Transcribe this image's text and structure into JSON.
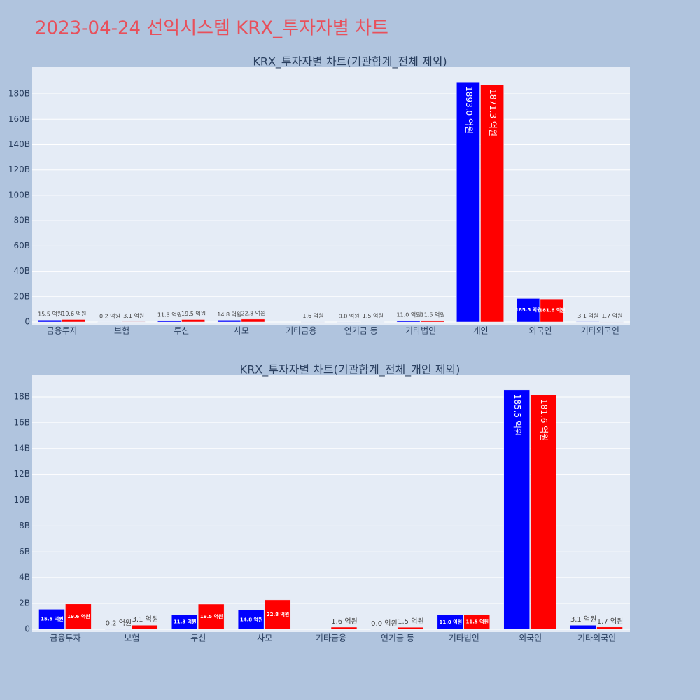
{
  "title": "2023-04-24 선익시스템 KRX_투자자별 차트",
  "chart_data": [
    {
      "type": "bar",
      "title": "KRX_투자자별 차트(기관합계_전체 제외)",
      "categories": [
        "금융투자",
        "보험",
        "투신",
        "사모",
        "기타금융",
        "연기금 등",
        "기타법인",
        "개인",
        "외국인",
        "기타외국인"
      ],
      "series": [
        {
          "color": "#0000ff",
          "values": [
            1550000000,
            20000000,
            1130000000,
            1480000000,
            null,
            0,
            1100000000,
            189300000000,
            18550000000,
            310000000
          ],
          "value_labels": [
            "15.5 억원",
            "0.2 억원",
            "11.3 억원",
            "14.8 억원",
            null,
            "0.0 억원",
            "11.0 억원",
            "1893.0 억원",
            "185.5 억원",
            "3.1 억원"
          ]
        },
        {
          "color": "#ff0000",
          "values": [
            1960000000,
            310000000,
            1950000000,
            2280000000,
            160000000,
            150000000,
            1150000000,
            187130000000,
            18160000000,
            170000000
          ],
          "value_labels": [
            "19.6 억원",
            "3.1 억원",
            "19.5 억원",
            "22.8 억원",
            "1.6 억원",
            "1.5 억원",
            "11.5 억원",
            "1871.3 억원",
            "181.6 억원",
            "1.7 억원"
          ]
        }
      ],
      "ylim": [
        -2200000000,
        201000000000
      ],
      "yticks": [
        0,
        {
          "value": 20000000000,
          "label": "20B"
        },
        {
          "value": 40000000000,
          "label": "40B"
        },
        {
          "value": 60000000000,
          "label": "60B"
        },
        {
          "value": 80000000000,
          "label": "80B"
        },
        {
          "value": 100000000000,
          "label": "100B"
        },
        {
          "value": 120000000000,
          "label": "120B"
        },
        {
          "value": 140000000000,
          "label": "140B"
        },
        {
          "value": 160000000000,
          "label": "160B"
        },
        {
          "value": 180000000000,
          "label": "180B"
        }
      ],
      "grid": true
    },
    {
      "type": "bar",
      "title": "KRX_투자자별 차트(기관합계_전체_개인 제외)",
      "categories": [
        "금융투자",
        "보험",
        "투신",
        "사모",
        "기타금융",
        "연기금 등",
        "기타법인",
        "외국인",
        "기타외국인"
      ],
      "series": [
        {
          "color": "#0000ff",
          "values": [
            1550000000,
            20000000,
            1130000000,
            1480000000,
            null,
            0,
            1100000000,
            18550000000,
            310000000
          ],
          "value_labels": [
            "15.5 억원",
            "0.2 억원",
            "11.3 억원",
            "14.8 억원",
            null,
            "0.0 억원",
            "11.0 억원",
            "185.5 억원",
            "3.1 억원"
          ]
        },
        {
          "color": "#ff0000",
          "values": [
            1960000000,
            310000000,
            1950000000,
            2280000000,
            160000000,
            150000000,
            1150000000,
            18160000000,
            170000000
          ],
          "value_labels": [
            "19.6 억원",
            "3.1 억원",
            "19.5 억원",
            "22.8 억원",
            "1.6 억원",
            "1.5 억원",
            "11.5 억원",
            "181.6 억원",
            "1.7 억원"
          ]
        }
      ],
      "ylim": [
        -220000000,
        19680000000
      ],
      "yticks": [
        0,
        {
          "value": 2000000000,
          "label": "2B"
        },
        {
          "value": 4000000000,
          "label": "4B"
        },
        {
          "value": 6000000000,
          "label": "6B"
        },
        {
          "value": 8000000000,
          "label": "8B"
        },
        {
          "value": 10000000000,
          "label": "10B"
        },
        {
          "value": 12000000000,
          "label": "12B"
        },
        {
          "value": 14000000000,
          "label": "14B"
        },
        {
          "value": 16000000000,
          "label": "16B"
        },
        {
          "value": 18000000000,
          "label": "18B"
        }
      ],
      "grid": true
    }
  ]
}
